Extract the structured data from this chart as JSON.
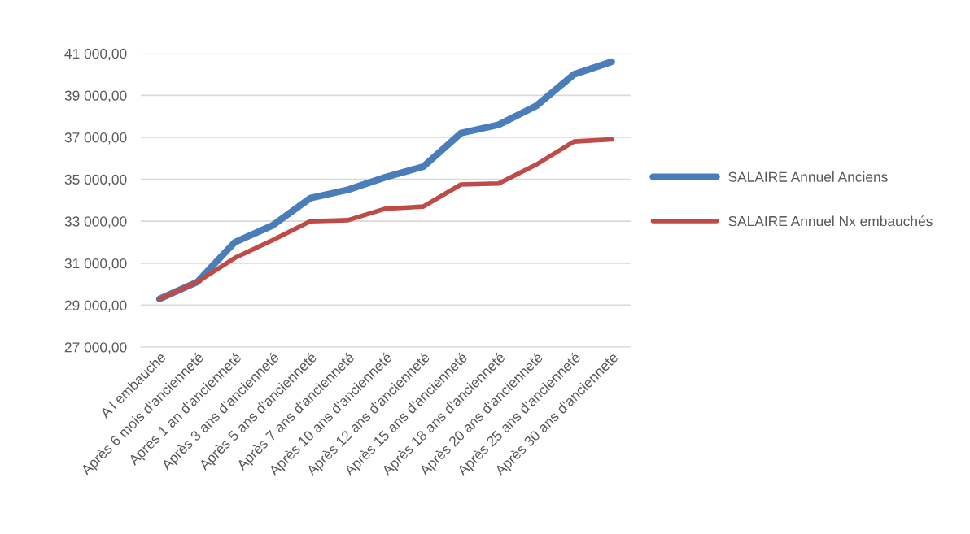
{
  "chart_data": {
    "type": "line",
    "categories": [
      "A l embauche",
      "Après 6 mois d'ancienneté",
      "Après 1 an d'ancienneté",
      "Après 3 ans d'ancienneté",
      "Après 5 ans d'ancienneté",
      "Après 7 ans d'ancienneté",
      "Après 10 ans d'ancienneté",
      "Après 12 ans d'ancienneté",
      "Après 15 ans d'ancienneté",
      "Après 18 ans d'ancienneté",
      "Après 20 ans d'ancienneté",
      "Après 25 ans d'ancienneté",
      "Après 30 ans d'ancienneté"
    ],
    "series": [
      {
        "name": "SALAIRE Annuel Anciens",
        "color": "#4a7ebb",
        "values": [
          29300,
          30100,
          32000,
          32800,
          34100,
          34500,
          35100,
          35600,
          37200,
          37600,
          38500,
          40000,
          40600
        ]
      },
      {
        "name": "SALAIRE Annuel Nx embauchés",
        "color": "#be4b48",
        "values": [
          29300,
          30100,
          31250,
          32100,
          33000,
          33050,
          33600,
          33700,
          34750,
          34800,
          35700,
          36800,
          36900
        ]
      }
    ],
    "ylim": [
      27000,
      41000
    ],
    "yticks": [
      {
        "value": 27000,
        "label": "27 000,00"
      },
      {
        "value": 29000,
        "label": "29 000,00"
      },
      {
        "value": 31000,
        "label": "31 000,00"
      },
      {
        "value": 33000,
        "label": "33 000,00"
      },
      {
        "value": 35000,
        "label": "35 000,00"
      },
      {
        "value": 37000,
        "label": "37 000,00"
      },
      {
        "value": 39000,
        "label": "39 000,00"
      },
      {
        "value": 41000,
        "label": "41 000,00"
      }
    ],
    "grid": "y",
    "legend": "right",
    "marker": "none",
    "line_style": "solid"
  }
}
